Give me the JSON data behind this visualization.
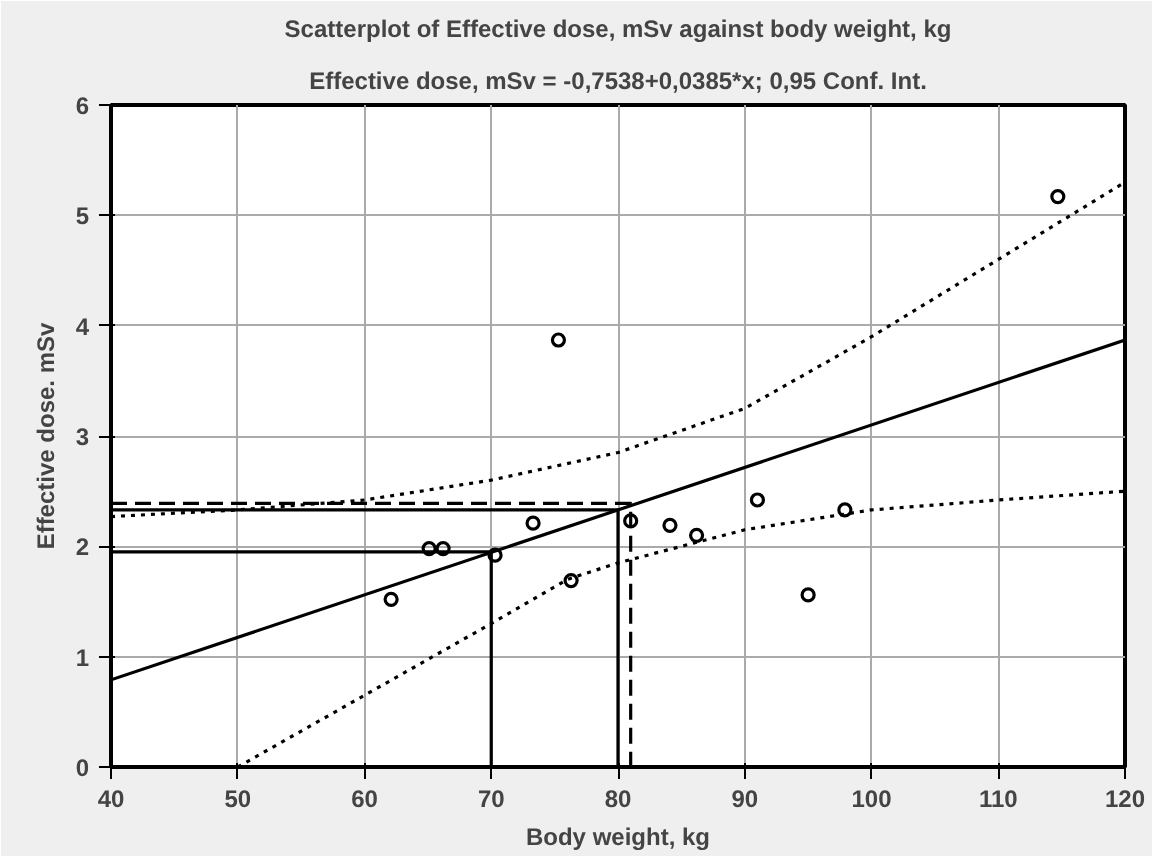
{
  "chart_data": {
    "type": "scatter",
    "title": "Scatterplot of Effective dose, mSv against body weight, kg",
    "subtitle": "Effective dose, mSv = -0,7538+0,0385*x; 0,95 Conf. Int.",
    "xlabel": "Body weight, kg",
    "ylabel": "Effective dose. mSv",
    "xlim": [
      40,
      120
    ],
    "ylim": [
      0,
      6
    ],
    "xticks": [
      40,
      50,
      60,
      70,
      80,
      90,
      100,
      110,
      120
    ],
    "yticks": [
      0,
      1,
      2,
      3,
      4,
      5,
      6
    ],
    "grid": true,
    "series": [
      {
        "marker": "circle",
        "color": "#000000",
        "x": [
          62.1,
          65.1,
          66.2,
          70.3,
          73.3,
          75.3,
          76.3,
          81.0,
          84.1,
          86.2,
          91.0,
          95.0,
          97.9,
          114.7
        ],
        "values": [
          1.52,
          1.98,
          1.98,
          1.92,
          2.21,
          3.87,
          1.69,
          2.23,
          2.19,
          2.1,
          2.42,
          1.56,
          2.33,
          5.17
        ]
      },
      {
        "type": "line",
        "color": "#000000",
        "line_style": "solid",
        "x": [
          40,
          120
        ],
        "values": [
          0.79,
          3.87
        ]
      },
      {
        "type": "line",
        "color": "#000000",
        "line_style": "dotted",
        "x": [
          40,
          50,
          60,
          70,
          80,
          90,
          100,
          110,
          120
        ],
        "values": [
          2.27,
          2.33,
          2.42,
          2.6,
          2.85,
          3.25,
          3.9,
          4.6,
          5.3
        ]
      },
      {
        "type": "line",
        "color": "#000000",
        "line_style": "dotted",
        "x": [
          50,
          60,
          70,
          76,
          80,
          90,
          100,
          110,
          120
        ],
        "values": [
          0,
          0.65,
          1.3,
          1.7,
          1.85,
          2.15,
          2.33,
          2.42,
          2.5
        ]
      },
      {
        "type": "line",
        "color": "#000000",
        "line_style": "solid",
        "x": [
          40,
          80,
          80
        ],
        "values": [
          2.33,
          2.33,
          0
        ]
      },
      {
        "type": "line",
        "color": "#000000",
        "line_style": "solid",
        "x": [
          40,
          70,
          70
        ],
        "values": [
          1.95,
          1.95,
          0
        ]
      },
      {
        "type": "line",
        "color": "#000000",
        "line_style": "dashed",
        "x": [
          40,
          81,
          81
        ],
        "values": [
          2.39,
          2.39,
          0
        ]
      }
    ]
  }
}
